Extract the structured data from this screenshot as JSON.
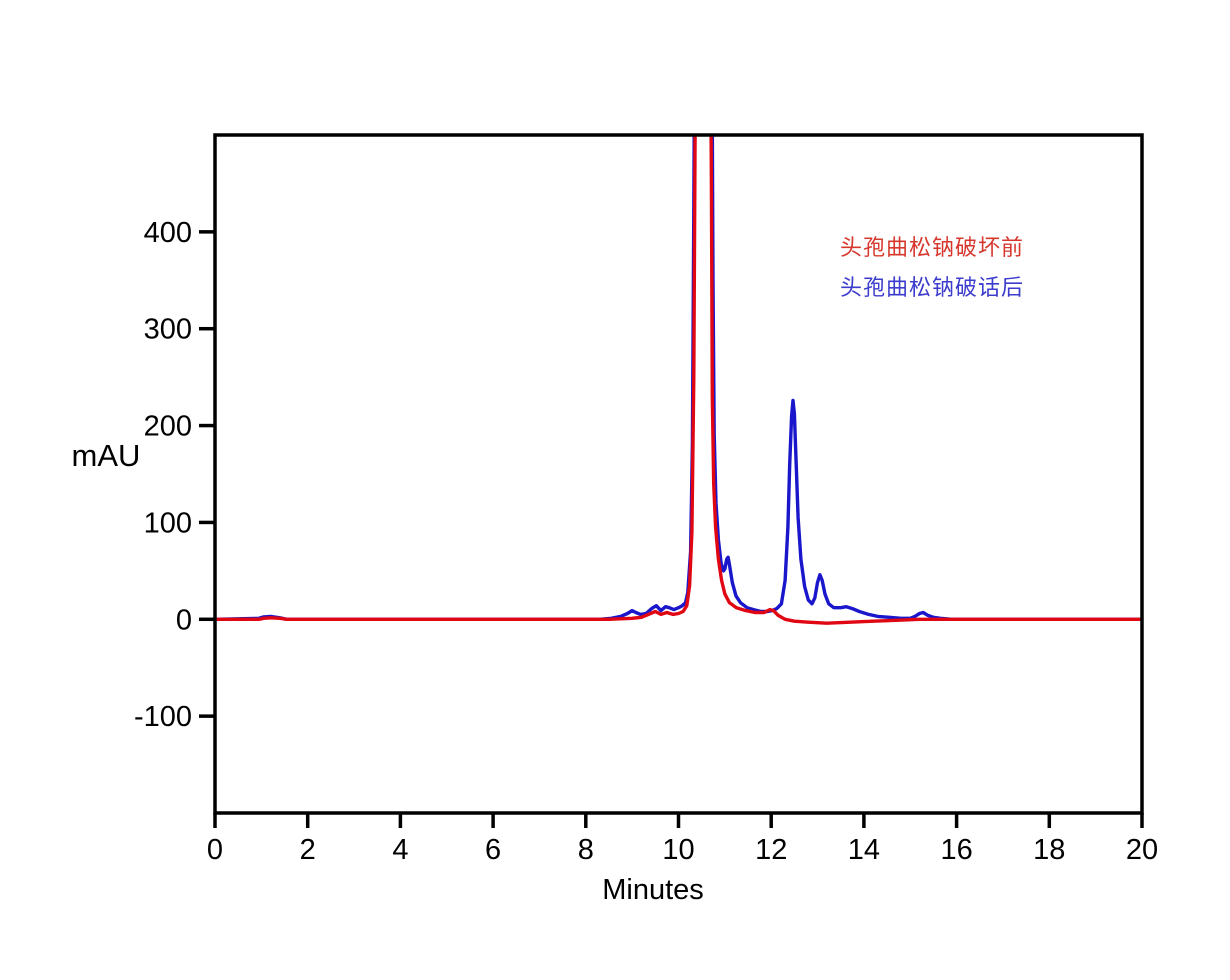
{
  "figure": {
    "background": "#ffffff",
    "frame_color": "#000000"
  },
  "chart_data": {
    "type": "line",
    "title": "",
    "xlabel": "Minutes",
    "ylabel": "mAU",
    "xlim": [
      0,
      20
    ],
    "ylim": [
      -200,
      500
    ],
    "x_ticks": [
      0,
      2,
      4,
      6,
      8,
      10,
      12,
      14,
      16,
      18,
      20
    ],
    "y_ticks": [
      -100,
      0,
      100,
      200,
      300,
      400
    ],
    "grid": false,
    "note": "main peak at ~10.35-10.72 min exceeds y-axis max and is clipped at plot top",
    "legend": {
      "position": "inside-upper-right",
      "entries": [
        {
          "label": "头孢曲松钠破坏前",
          "color": "#d6382e"
        },
        {
          "label": "头孢曲松钠破话后",
          "color": "#3c3ccd"
        }
      ]
    },
    "series": [
      {
        "name": "头孢曲松钠破话后",
        "color": "#1a16cb",
        "points": [
          [
            0,
            0
          ],
          [
            0.95,
            1
          ],
          [
            1.05,
            2.5
          ],
          [
            1.2,
            3
          ],
          [
            1.4,
            1.5
          ],
          [
            1.55,
            0
          ],
          [
            3,
            0
          ],
          [
            6,
            0
          ],
          [
            8.3,
            0
          ],
          [
            8.55,
            1
          ],
          [
            8.75,
            3
          ],
          [
            8.9,
            6
          ],
          [
            9.0,
            9
          ],
          [
            9.08,
            7
          ],
          [
            9.18,
            5
          ],
          [
            9.3,
            6
          ],
          [
            9.42,
            11
          ],
          [
            9.52,
            14
          ],
          [
            9.62,
            9
          ],
          [
            9.72,
            13
          ],
          [
            9.8,
            12
          ],
          [
            9.9,
            10
          ],
          [
            10.0,
            12
          ],
          [
            10.08,
            14
          ],
          [
            10.15,
            17
          ],
          [
            10.2,
            28
          ],
          [
            10.26,
            70
          ],
          [
            10.3,
            180
          ],
          [
            10.33,
            420
          ],
          [
            10.35,
            600
          ],
          [
            10.72,
            600
          ],
          [
            10.745,
            350
          ],
          [
            10.77,
            190
          ],
          [
            10.81,
            120
          ],
          [
            10.86,
            82
          ],
          [
            10.92,
            58
          ],
          [
            10.97,
            50
          ],
          [
            11.0,
            52
          ],
          [
            11.04,
            62
          ],
          [
            11.07,
            64
          ],
          [
            11.1,
            56
          ],
          [
            11.16,
            38
          ],
          [
            11.24,
            24
          ],
          [
            11.34,
            17
          ],
          [
            11.48,
            12
          ],
          [
            11.62,
            10
          ],
          [
            11.78,
            8
          ],
          [
            11.92,
            8
          ],
          [
            12.02,
            9
          ],
          [
            12.12,
            11
          ],
          [
            12.22,
            16
          ],
          [
            12.3,
            40
          ],
          [
            12.36,
            95
          ],
          [
            12.4,
            160
          ],
          [
            12.44,
            210
          ],
          [
            12.47,
            226
          ],
          [
            12.5,
            212
          ],
          [
            12.54,
            160
          ],
          [
            12.58,
            105
          ],
          [
            12.64,
            62
          ],
          [
            12.72,
            34
          ],
          [
            12.8,
            20
          ],
          [
            12.88,
            16
          ],
          [
            12.94,
            22
          ],
          [
            13.0,
            38
          ],
          [
            13.05,
            46
          ],
          [
            13.1,
            40
          ],
          [
            13.16,
            26
          ],
          [
            13.24,
            16
          ],
          [
            13.35,
            12
          ],
          [
            13.5,
            12
          ],
          [
            13.62,
            13
          ],
          [
            13.75,
            11
          ],
          [
            13.9,
            8
          ],
          [
            14.1,
            5
          ],
          [
            14.3,
            3
          ],
          [
            14.55,
            2
          ],
          [
            14.8,
            1
          ],
          [
            15.0,
            1
          ],
          [
            15.1,
            3
          ],
          [
            15.2,
            6
          ],
          [
            15.28,
            7
          ],
          [
            15.38,
            4
          ],
          [
            15.5,
            2
          ],
          [
            15.65,
            1
          ],
          [
            15.9,
            0
          ],
          [
            17,
            0
          ],
          [
            20,
            0
          ]
        ]
      },
      {
        "name": "头孢曲松钠破坏前",
        "color": "#e00713",
        "points": [
          [
            0,
            0
          ],
          [
            0.95,
            0
          ],
          [
            1.05,
            1
          ],
          [
            1.2,
            1.5
          ],
          [
            1.4,
            1
          ],
          [
            1.55,
            0
          ],
          [
            3,
            0
          ],
          [
            6,
            0
          ],
          [
            8.5,
            0
          ],
          [
            9.0,
            1
          ],
          [
            9.2,
            2
          ],
          [
            9.35,
            5
          ],
          [
            9.5,
            8
          ],
          [
            9.62,
            5
          ],
          [
            9.75,
            7
          ],
          [
            9.88,
            5
          ],
          [
            10.0,
            6
          ],
          [
            10.1,
            8
          ],
          [
            10.18,
            14
          ],
          [
            10.24,
            35
          ],
          [
            10.29,
            90
          ],
          [
            10.33,
            250
          ],
          [
            10.36,
            520
          ],
          [
            10.38,
            600
          ],
          [
            10.69,
            600
          ],
          [
            10.71,
            450
          ],
          [
            10.73,
            230
          ],
          [
            10.76,
            140
          ],
          [
            10.8,
            95
          ],
          [
            10.86,
            62
          ],
          [
            10.93,
            40
          ],
          [
            11.0,
            26
          ],
          [
            11.1,
            17
          ],
          [
            11.25,
            12
          ],
          [
            11.45,
            9
          ],
          [
            11.65,
            7
          ],
          [
            11.85,
            7
          ],
          [
            11.97,
            10
          ],
          [
            12.05,
            9
          ],
          [
            12.15,
            4
          ],
          [
            12.3,
            0
          ],
          [
            12.5,
            -2
          ],
          [
            12.8,
            -3
          ],
          [
            13.2,
            -4
          ],
          [
            13.7,
            -3
          ],
          [
            14.2,
            -2
          ],
          [
            14.7,
            -1
          ],
          [
            15.2,
            0
          ],
          [
            17,
            0
          ],
          [
            20,
            0
          ]
        ]
      }
    ]
  }
}
